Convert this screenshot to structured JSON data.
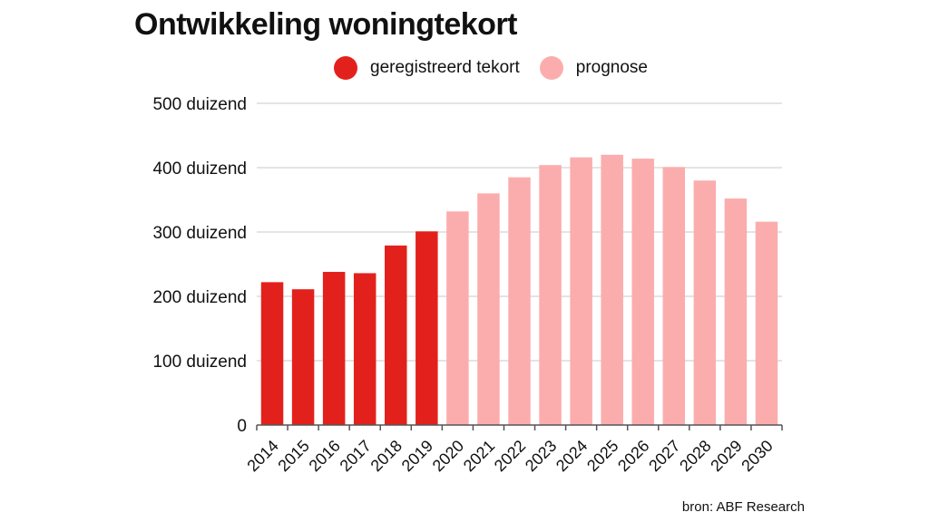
{
  "chart_data": {
    "type": "bar",
    "title": "Ontwikkeling woningtekort",
    "categories": [
      "2014",
      "2015",
      "2016",
      "2017",
      "2018",
      "2019",
      "2020",
      "2021",
      "2022",
      "2023",
      "2024",
      "2025",
      "2026",
      "2027",
      "2028",
      "2029",
      "2030"
    ],
    "values": [
      222,
      211,
      238,
      236,
      279,
      301,
      332,
      360,
      385,
      404,
      416,
      420,
      414,
      401,
      380,
      352,
      316
    ],
    "series_assignment": [
      "geregistreerd tekort",
      "geregistreerd tekort",
      "geregistreerd tekort",
      "geregistreerd tekort",
      "geregistreerd tekort",
      "geregistreerd tekort",
      "prognose",
      "prognose",
      "prognose",
      "prognose",
      "prognose",
      "prognose",
      "prognose",
      "prognose",
      "prognose",
      "prognose",
      "prognose"
    ],
    "legend": [
      {
        "name": "geregistreerd tekort",
        "color": "#e3211c"
      },
      {
        "name": "prognose",
        "color": "#fbadad"
      }
    ],
    "ylim": [
      0,
      500
    ],
    "yticks": [
      0,
      100,
      200,
      300,
      400,
      500
    ],
    "ytick_labels": [
      "0",
      "100 duizend",
      "200 duizend",
      "300 duizend",
      "400 duizend",
      "500 duizend"
    ],
    "grid": true,
    "legend_position": "top"
  },
  "source": "bron: ABF Research"
}
